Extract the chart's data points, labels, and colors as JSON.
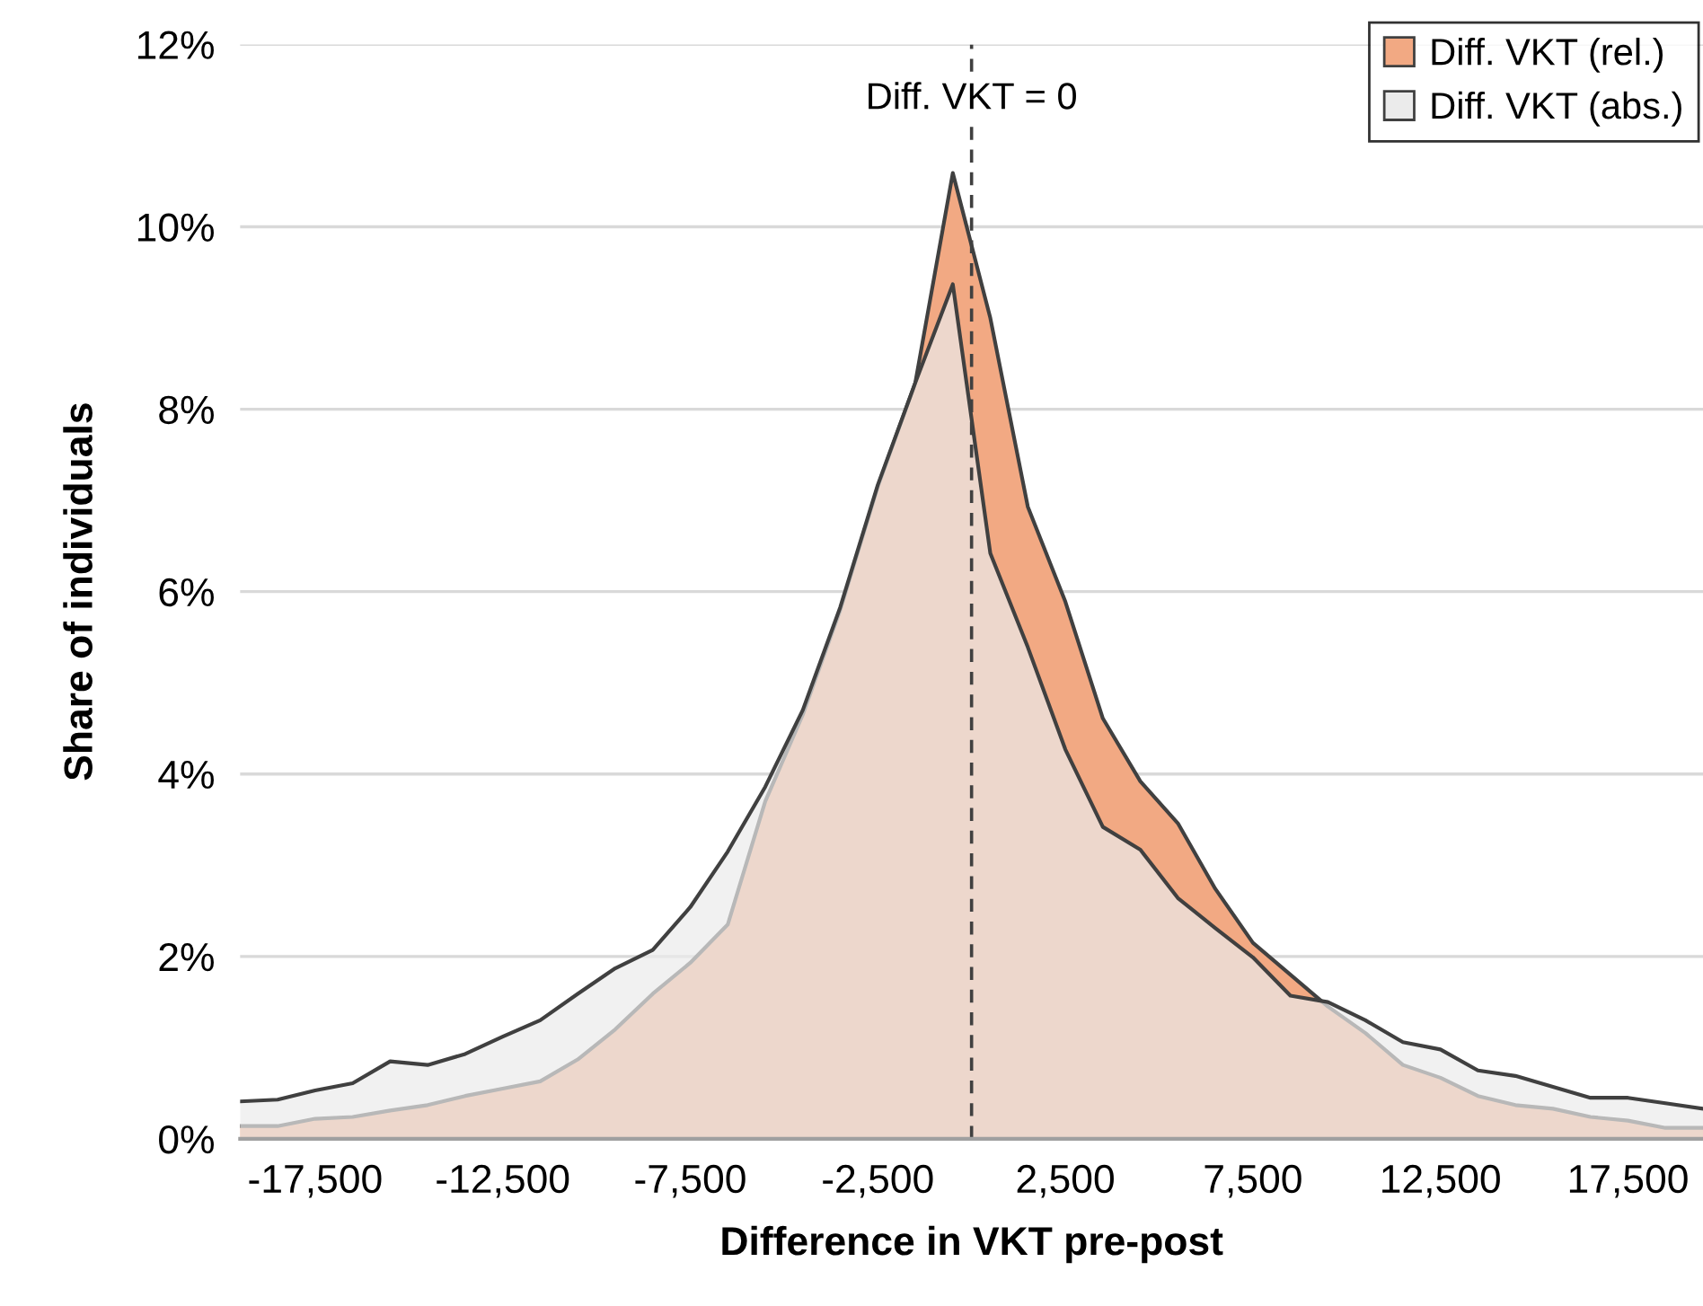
{
  "chart_data": {
    "type": "area",
    "xlabel": "Difference in VKT pre-post",
    "ylabel": "Share of individuals",
    "x": [
      -19500,
      -18500,
      -17500,
      -16500,
      -15500,
      -14500,
      -13500,
      -12500,
      -11500,
      -10500,
      -9500,
      -8500,
      -7500,
      -6500,
      -5500,
      -4500,
      -3500,
      -2500,
      -1500,
      -500,
      500,
      1500,
      2500,
      3500,
      4500,
      5500,
      6500,
      7500,
      8500,
      9500,
      10500,
      11500,
      12500,
      13500,
      14500,
      15500,
      16500,
      17500,
      18500,
      19500
    ],
    "series": [
      {
        "name": "Diff. VKT (rel.)",
        "color": "#f2a983",
        "values": [
          0.14,
          0.14,
          0.22,
          0.24,
          0.31,
          0.37,
          0.47,
          0.55,
          0.63,
          0.87,
          1.2,
          1.59,
          1.93,
          2.35,
          3.7,
          4.65,
          5.8,
          7.15,
          8.29,
          10.59,
          9.0,
          6.93,
          5.89,
          4.61,
          3.92,
          3.46,
          2.74,
          2.15,
          1.8,
          1.45,
          1.16,
          0.81,
          0.67,
          0.47,
          0.37,
          0.33,
          0.24,
          0.2,
          0.12,
          0.12
        ]
      },
      {
        "name": "Diff. VKT (abs.)",
        "color": "#ebebeb",
        "values": [
          0.41,
          0.43,
          0.53,
          0.61,
          0.85,
          0.81,
          0.93,
          1.12,
          1.3,
          1.59,
          1.87,
          2.07,
          2.54,
          3.15,
          3.86,
          4.7,
          5.83,
          7.17,
          8.29,
          9.37,
          6.42,
          5.39,
          4.27,
          3.42,
          3.17,
          2.64,
          2.31,
          1.99,
          1.57,
          1.5,
          1.3,
          1.06,
          0.98,
          0.75,
          0.69,
          0.57,
          0.45,
          0.45,
          0.39,
          0.33
        ]
      }
    ],
    "xlim": [
      -19500,
      19500
    ],
    "xticks": [
      {
        "value": -17500,
        "label": "-17,500"
      },
      {
        "value": -12500,
        "label": "-12,500"
      },
      {
        "value": -7500,
        "label": "-7,500"
      },
      {
        "value": -2500,
        "label": "-2,500"
      },
      {
        "value": 2500,
        "label": "2,500"
      },
      {
        "value": 7500,
        "label": "7,500"
      },
      {
        "value": 12500,
        "label": "12,500"
      },
      {
        "value": 17500,
        "label": "17,500"
      }
    ],
    "ylim": [
      0,
      12
    ],
    "yticks": [
      {
        "value": 0,
        "label": "0%"
      },
      {
        "value": 2,
        "label": "2%"
      },
      {
        "value": 4,
        "label": "4%"
      },
      {
        "value": 6,
        "label": "6%"
      },
      {
        "value": 8,
        "label": "8%"
      },
      {
        "value": 10,
        "label": "10%"
      },
      {
        "value": 12,
        "label": "12%"
      }
    ],
    "ref_lines": [
      {
        "axis": "x",
        "value": 0,
        "label": "Diff. VKT = 0",
        "color": "#404040",
        "line_style": "dashed"
      }
    ],
    "grid": "y",
    "legend": "top right"
  }
}
